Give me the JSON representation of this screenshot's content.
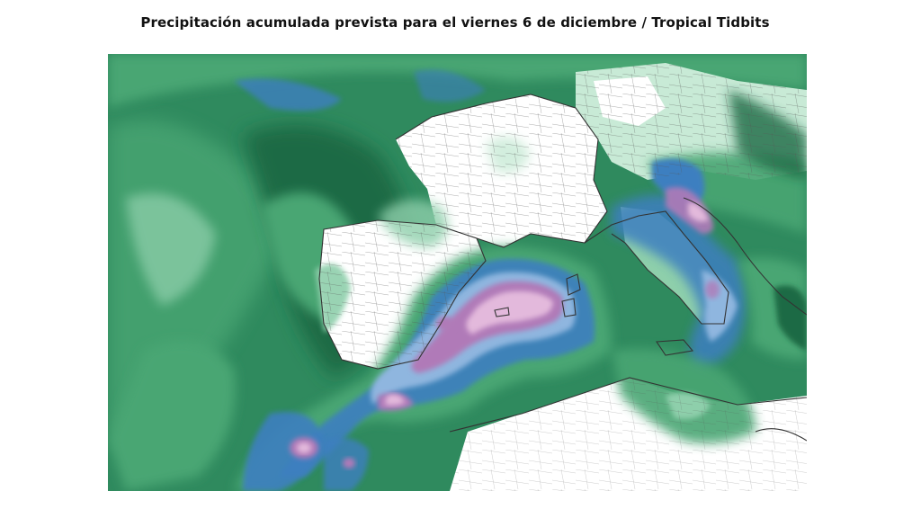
{
  "header": {
    "title": "Precipitación acumulada prevista para el viernes 6 de diciembre / Tropical Tidbits"
  },
  "map": {
    "palette": {
      "ocean_base": "#2f8a5e",
      "dark_green": "#1f6b45",
      "mid_green": "#48a673",
      "light_green": "#8ecfab",
      "pale_green": "#c8ead6",
      "land_dry": "#ffffff",
      "blue": "#3d7fc0",
      "light_blue": "#8fb6df",
      "purple": "#b07ab8",
      "pink": "#e3b9dc",
      "boundary": "#333333"
    }
  }
}
